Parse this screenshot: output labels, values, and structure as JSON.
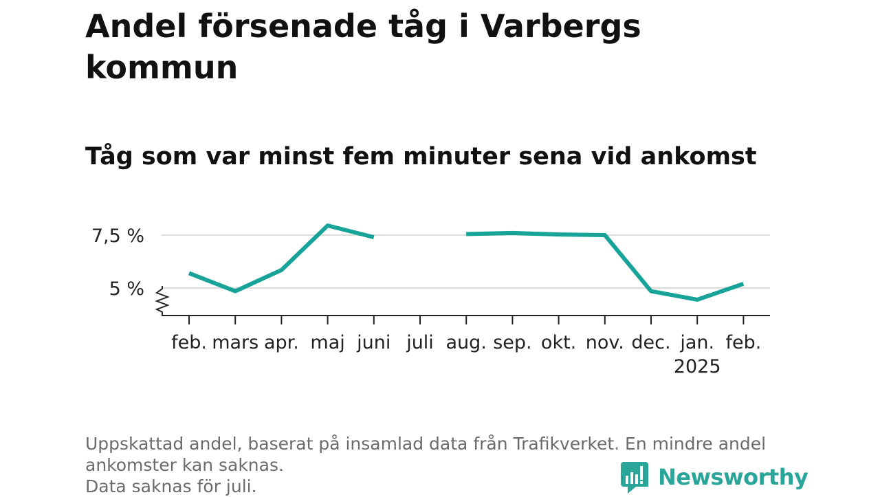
{
  "title": "Andel försenade tåg i Varbergs kommun",
  "subtitle": "Tåg som var minst fem minuter sena vid ankomst",
  "chart_data": {
    "type": "line",
    "categories": [
      "feb.",
      "mars",
      "apr.",
      "maj",
      "juni",
      "juli",
      "aug.",
      "sep.",
      "okt.",
      "nov.",
      "dec.",
      "jan.",
      "feb."
    ],
    "category_sublabels": [
      "",
      "",
      "",
      "",
      "",
      "",
      "",
      "",
      "",
      "",
      "",
      "2025",
      ""
    ],
    "series": [
      {
        "values": [
          5.7,
          4.85,
          5.85,
          7.95,
          7.4,
          null,
          7.55,
          7.6,
          7.53,
          7.5,
          4.85,
          4.45,
          5.2
        ]
      }
    ],
    "y_ticks": [
      5,
      7.5
    ],
    "y_tick_labels": [
      "5 %",
      "7,5 %"
    ],
    "ylim": [
      3.75,
      8.25
    ],
    "axis_break": true,
    "grid": true,
    "line_color": "#17a398",
    "grid_color": "#dcdcdc"
  },
  "footnote": {
    "line1": "Uppskattad andel, baserat på insamlad data från Trafikverket. En mindre andel ankomster kan saknas.",
    "line2": "Data saknas för juli."
  },
  "brand": {
    "name": "Newsworthy",
    "icon": "bar-chart-speech-bubble-icon",
    "color": "#2aa59a"
  }
}
